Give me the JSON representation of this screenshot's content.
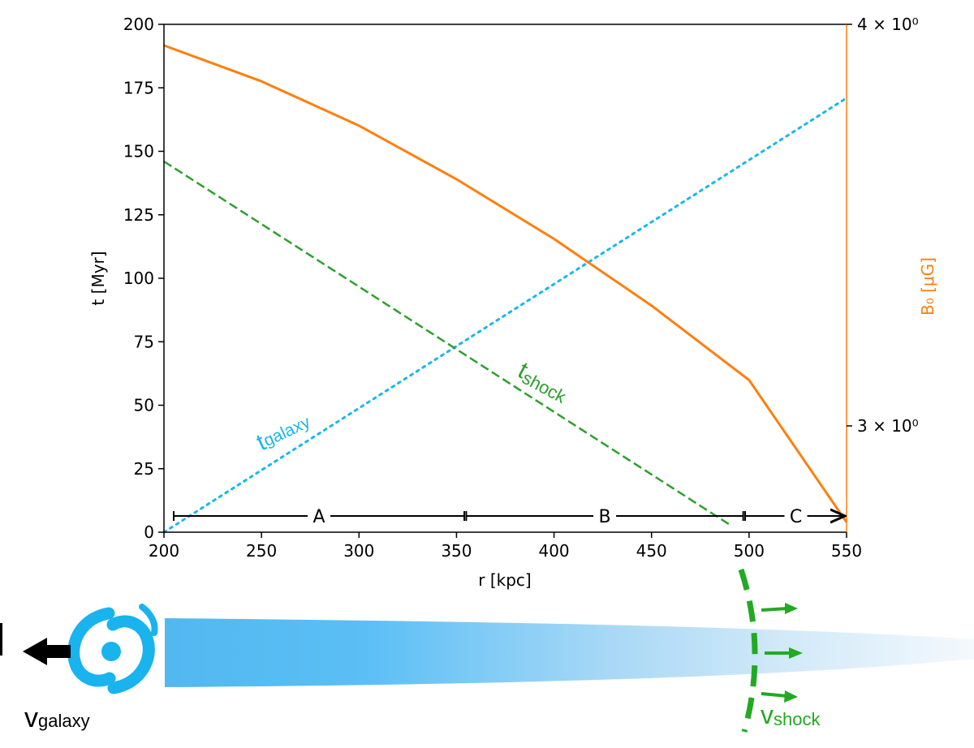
{
  "colors": {
    "orange": "#ff7f0e",
    "cyan": "#1ab7ea",
    "green": "#2ca02c",
    "bright_green": "#22aa22",
    "light_blue": "#52b8f0",
    "galaxy_blue": "#19b3ee",
    "black": "#000000"
  },
  "chart_data": {
    "type": "line",
    "xlabel": "r [kpc]",
    "ylabel": "t [Myr]",
    "y2label": "B₀ [μG]",
    "xlim": [
      200,
      550
    ],
    "ylim": [
      0,
      200
    ],
    "y2lim": [
      2.78,
      4.0
    ],
    "y2scale": "log",
    "xticks": [
      200,
      250,
      300,
      350,
      400,
      450,
      500,
      550
    ],
    "yticks": [
      0,
      25,
      50,
      75,
      100,
      125,
      150,
      175,
      200
    ],
    "y2ticks": [
      {
        "value": 3.0,
        "label": "3 × 10⁰"
      },
      {
        "value": 4.0,
        "label": "4 × 10⁰"
      }
    ],
    "series": [
      {
        "name": "t_galaxy",
        "style": "dotted",
        "color": "#1ab7ea",
        "axis": "left",
        "x": [
          200,
          550
        ],
        "y": [
          0,
          171
        ]
      },
      {
        "name": "t_shock",
        "style": "dashed",
        "color": "#2ca02c",
        "axis": "left",
        "x": [
          200,
          490
        ],
        "y": [
          146,
          3
        ]
      },
      {
        "name": "B0",
        "style": "solid",
        "color": "#ff7f0e",
        "axis": "right",
        "x": [
          200,
          250,
          300,
          350,
          400,
          450,
          500,
          550
        ],
        "y": [
          3.94,
          3.84,
          3.72,
          3.58,
          3.43,
          3.27,
          3.1,
          2.8
        ]
      }
    ],
    "annotations": [
      {
        "main": "t",
        "sub": "galaxy",
        "color": "#1ab7ea"
      },
      {
        "main": "t",
        "sub": "shock",
        "color": "#2ca02c"
      }
    ],
    "regions": [
      {
        "label": "A",
        "from": 205,
        "to": 354
      },
      {
        "label": "B",
        "from": 355,
        "to": 497
      },
      {
        "label": "C",
        "from": 498,
        "to": 550
      }
    ]
  },
  "schematic": {
    "galaxy_velocity": {
      "main": "v",
      "sub": "galaxy"
    },
    "shock_velocity": {
      "main": "v",
      "sub": "shock"
    }
  }
}
